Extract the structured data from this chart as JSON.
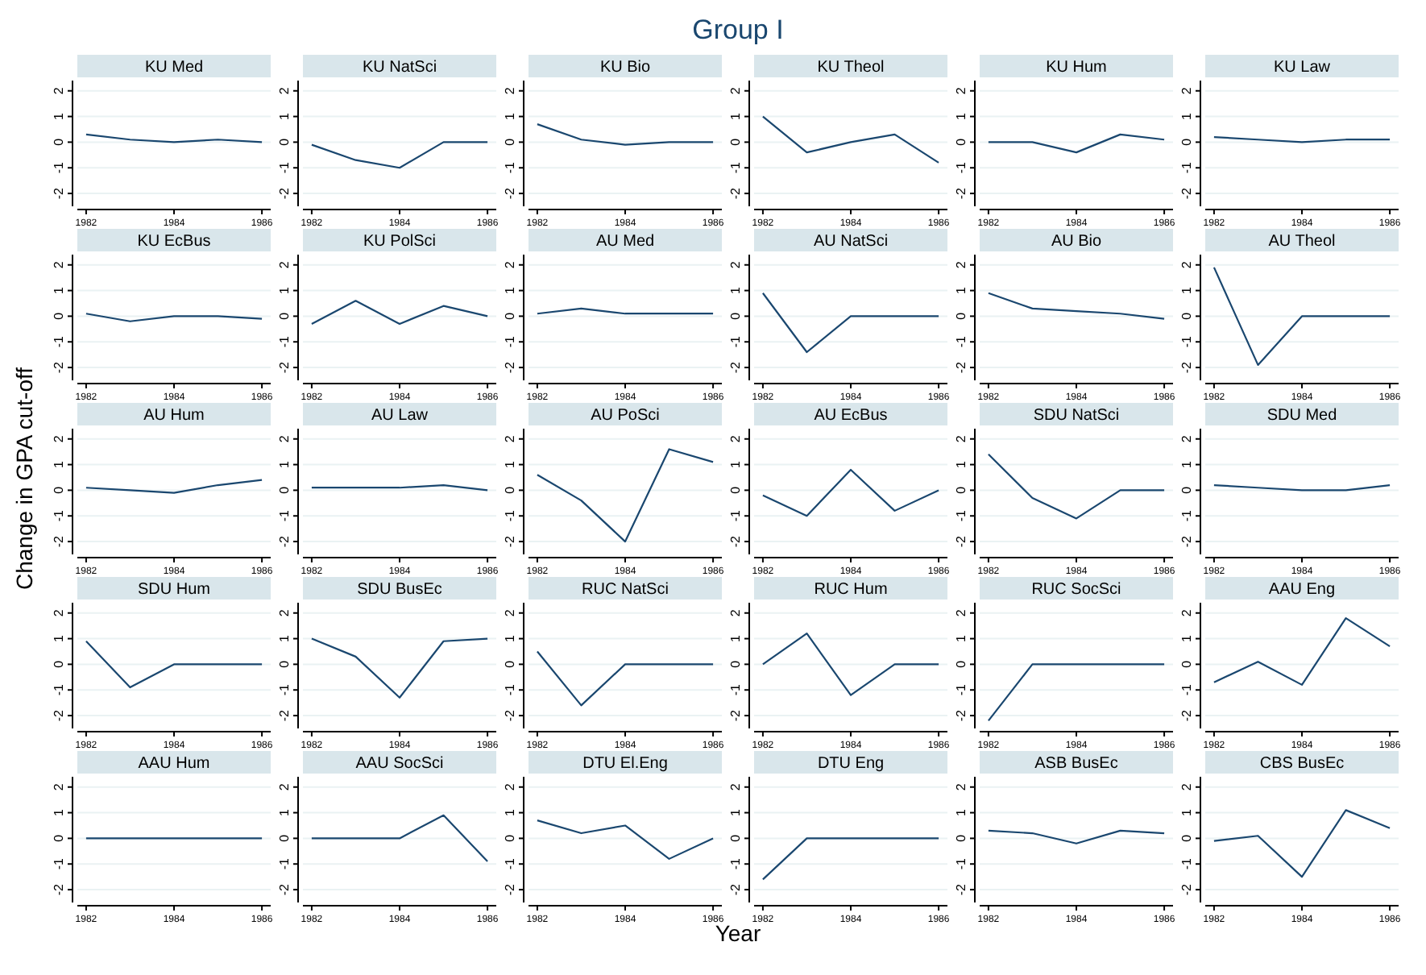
{
  "chart_data": [
    {
      "type": "line",
      "title": "KU Med",
      "annotations": [
        "Group I"
      ],
      "x": [
        1982,
        1983,
        1984,
        1985,
        1986
      ],
      "values": [
        0.3,
        0.1,
        0,
        0.1,
        0
      ],
      "color": "#1a476f",
      "xlim": [
        1981.8,
        1986.2
      ],
      "ylim": [
        -2.5,
        2.4
      ],
      "xticks": [
        1982,
        1984,
        1986
      ],
      "yticks": [
        -2,
        -1,
        0,
        1,
        2
      ],
      "grid": "y"
    },
    {
      "type": "line",
      "title": "KU NatSci",
      "x": [
        1982,
        1983,
        1984,
        1985,
        1986
      ],
      "values": [
        -0.1,
        -0.7,
        -1,
        0,
        0
      ],
      "color": "#1a476f",
      "xlim": [
        1981.8,
        1986.2
      ],
      "ylim": [
        -2.5,
        2.4
      ],
      "xticks": [
        1982,
        1984,
        1986
      ],
      "yticks": [
        -2,
        -1,
        0,
        1,
        2
      ],
      "grid": "y"
    },
    {
      "type": "line",
      "title": "KU Bio",
      "x": [
        1982,
        1983,
        1984,
        1985,
        1986
      ],
      "values": [
        0.7,
        0.1,
        -0.1,
        0,
        0
      ],
      "color": "#1a476f",
      "xlim": [
        1981.8,
        1986.2
      ],
      "ylim": [
        -2.5,
        2.4
      ],
      "xticks": [
        1982,
        1984,
        1986
      ],
      "yticks": [
        -2,
        -1,
        0,
        1,
        2
      ],
      "grid": "y"
    },
    {
      "type": "line",
      "title": "KU Theol",
      "x": [
        1982,
        1983,
        1984,
        1985,
        1986
      ],
      "values": [
        1,
        -0.4,
        0,
        0.3,
        -0.8
      ],
      "color": "#1a476f",
      "xlim": [
        1981.8,
        1986.2
      ],
      "ylim": [
        -2.5,
        2.4
      ],
      "xticks": [
        1982,
        1984,
        1986
      ],
      "yticks": [
        -2,
        -1,
        0,
        1,
        2
      ],
      "grid": "y"
    },
    {
      "type": "line",
      "title": "KU Hum",
      "x": [
        1982,
        1983,
        1984,
        1985,
        1986
      ],
      "values": [
        0,
        0,
        -0.4,
        0.3,
        0.1
      ],
      "color": "#1a476f",
      "xlim": [
        1981.8,
        1986.2
      ],
      "ylim": [
        -2.5,
        2.4
      ],
      "xticks": [
        1982,
        1984,
        1986
      ],
      "yticks": [
        -2,
        -1,
        0,
        1,
        2
      ],
      "grid": "y"
    },
    {
      "type": "line",
      "title": "KU Law",
      "x": [
        1982,
        1983,
        1984,
        1985,
        1986
      ],
      "values": [
        0.2,
        0.1,
        0,
        0.1,
        0.1
      ],
      "color": "#1a476f",
      "xlim": [
        1981.8,
        1986.2
      ],
      "ylim": [
        -2.5,
        2.4
      ],
      "xticks": [
        1982,
        1984,
        1986
      ],
      "yticks": [
        -2,
        -1,
        0,
        1,
        2
      ],
      "grid": "y"
    },
    {
      "type": "line",
      "title": "KU EcBus",
      "x": [
        1982,
        1983,
        1984,
        1985,
        1986
      ],
      "values": [
        0.1,
        -0.2,
        0,
        0,
        -0.1
      ],
      "color": "#1a476f",
      "xlim": [
        1981.8,
        1986.2
      ],
      "ylim": [
        -2.5,
        2.4
      ],
      "xticks": [
        1982,
        1984,
        1986
      ],
      "yticks": [
        -2,
        -1,
        0,
        1,
        2
      ],
      "grid": "y"
    },
    {
      "type": "line",
      "title": "KU PolSci",
      "x": [
        1982,
        1983,
        1984,
        1985,
        1986
      ],
      "values": [
        -0.3,
        0.6,
        -0.3,
        0.4,
        0
      ],
      "color": "#1a476f",
      "xlim": [
        1981.8,
        1986.2
      ],
      "ylim": [
        -2.5,
        2.4
      ],
      "xticks": [
        1982,
        1984,
        1986
      ],
      "yticks": [
        -2,
        -1,
        0,
        1,
        2
      ],
      "grid": "y"
    },
    {
      "type": "line",
      "title": "AU Med",
      "x": [
        1982,
        1983,
        1984,
        1985,
        1986
      ],
      "values": [
        0.1,
        0.3,
        0.1,
        0.1,
        0.1
      ],
      "color": "#1a476f",
      "xlim": [
        1981.8,
        1986.2
      ],
      "ylim": [
        -2.5,
        2.4
      ],
      "xticks": [
        1982,
        1984,
        1986
      ],
      "yticks": [
        -2,
        -1,
        0,
        1,
        2
      ],
      "grid": "y"
    },
    {
      "type": "line",
      "title": "AU NatSci",
      "x": [
        1982,
        1983,
        1984,
        1985,
        1986
      ],
      "values": [
        0.9,
        -1.4,
        0,
        0,
        0
      ],
      "color": "#1a476f",
      "xlim": [
        1981.8,
        1986.2
      ],
      "ylim": [
        -2.5,
        2.4
      ],
      "xticks": [
        1982,
        1984,
        1986
      ],
      "yticks": [
        -2,
        -1,
        0,
        1,
        2
      ],
      "grid": "y"
    },
    {
      "type": "line",
      "title": "AU Bio",
      "x": [
        1982,
        1983,
        1984,
        1985,
        1986
      ],
      "values": [
        0.9,
        0.3,
        0.2,
        0.1,
        -0.1
      ],
      "color": "#1a476f",
      "xlim": [
        1981.8,
        1986.2
      ],
      "ylim": [
        -2.5,
        2.4
      ],
      "xticks": [
        1982,
        1984,
        1986
      ],
      "yticks": [
        -2,
        -1,
        0,
        1,
        2
      ],
      "grid": "y"
    },
    {
      "type": "line",
      "title": "AU Theol",
      "x": [
        1982,
        1983,
        1984,
        1985,
        1986
      ],
      "values": [
        1.9,
        -1.9,
        0,
        0,
        0
      ],
      "color": "#1a476f",
      "xlim": [
        1981.8,
        1986.2
      ],
      "ylim": [
        -2.5,
        2.4
      ],
      "xticks": [
        1982,
        1984,
        1986
      ],
      "yticks": [
        -2,
        -1,
        0,
        1,
        2
      ],
      "grid": "y"
    },
    {
      "type": "line",
      "title": "AU Hum",
      "ylabel": "Change in GPA cut-off",
      "x": [
        1982,
        1983,
        1984,
        1985,
        1986
      ],
      "values": [
        0.1,
        0,
        -0.1,
        0.2,
        0.4
      ],
      "color": "#1a476f",
      "xlim": [
        1981.8,
        1986.2
      ],
      "ylim": [
        -2.5,
        2.4
      ],
      "xticks": [
        1982,
        1984,
        1986
      ],
      "yticks": [
        -2,
        -1,
        0,
        1,
        2
      ],
      "grid": "y"
    },
    {
      "type": "line",
      "title": "AU Law",
      "x": [
        1982,
        1983,
        1984,
        1985,
        1986
      ],
      "values": [
        0.1,
        0.1,
        0.1,
        0.2,
        0
      ],
      "color": "#1a476f",
      "xlim": [
        1981.8,
        1986.2
      ],
      "ylim": [
        -2.5,
        2.4
      ],
      "xticks": [
        1982,
        1984,
        1986
      ],
      "yticks": [
        -2,
        -1,
        0,
        1,
        2
      ],
      "grid": "y"
    },
    {
      "type": "line",
      "title": "AU PoSci",
      "x": [
        1982,
        1983,
        1984,
        1985,
        1986
      ],
      "values": [
        0.6,
        -0.4,
        -2,
        1.6,
        1.1
      ],
      "color": "#1a476f",
      "xlim": [
        1981.8,
        1986.2
      ],
      "ylim": [
        -2.5,
        2.4
      ],
      "xticks": [
        1982,
        1984,
        1986
      ],
      "yticks": [
        -2,
        -1,
        0,
        1,
        2
      ],
      "grid": "y"
    },
    {
      "type": "line",
      "title": "AU EcBus",
      "x": [
        1982,
        1983,
        1984,
        1985,
        1986
      ],
      "values": [
        -0.2,
        -1,
        0.8,
        -0.8,
        0
      ],
      "color": "#1a476f",
      "xlim": [
        1981.8,
        1986.2
      ],
      "ylim": [
        -2.5,
        2.4
      ],
      "xticks": [
        1982,
        1984,
        1986
      ],
      "yticks": [
        -2,
        -1,
        0,
        1,
        2
      ],
      "grid": "y"
    },
    {
      "type": "line",
      "title": "SDU NatSci",
      "x": [
        1982,
        1983,
        1984,
        1985,
        1986
      ],
      "values": [
        1.4,
        -0.3,
        -1.1,
        0,
        0
      ],
      "color": "#1a476f",
      "xlim": [
        1981.8,
        1986.2
      ],
      "ylim": [
        -2.5,
        2.4
      ],
      "xticks": [
        1982,
        1984,
        1986
      ],
      "yticks": [
        -2,
        -1,
        0,
        1,
        2
      ],
      "grid": "y"
    },
    {
      "type": "line",
      "title": "SDU Med",
      "x": [
        1982,
        1983,
        1984,
        1985,
        1986
      ],
      "values": [
        0.2,
        0.1,
        0,
        0,
        0.2
      ],
      "color": "#1a476f",
      "xlim": [
        1981.8,
        1986.2
      ],
      "ylim": [
        -2.5,
        2.4
      ],
      "xticks": [
        1982,
        1984,
        1986
      ],
      "yticks": [
        -2,
        -1,
        0,
        1,
        2
      ],
      "grid": "y"
    },
    {
      "type": "line",
      "title": "SDU Hum",
      "x": [
        1982,
        1983,
        1984,
        1985,
        1986
      ],
      "values": [
        0.9,
        -0.9,
        0,
        0,
        0
      ],
      "color": "#1a476f",
      "xlim": [
        1981.8,
        1986.2
      ],
      "ylim": [
        -2.5,
        2.4
      ],
      "xticks": [
        1982,
        1984,
        1986
      ],
      "yticks": [
        -2,
        -1,
        0,
        1,
        2
      ],
      "grid": "y"
    },
    {
      "type": "line",
      "title": "SDU BusEc",
      "x": [
        1982,
        1983,
        1984,
        1985,
        1986
      ],
      "values": [
        1,
        0.3,
        -1.3,
        0.9,
        1
      ],
      "color": "#1a476f",
      "xlim": [
        1981.8,
        1986.2
      ],
      "ylim": [
        -2.5,
        2.4
      ],
      "xticks": [
        1982,
        1984,
        1986
      ],
      "yticks": [
        -2,
        -1,
        0,
        1,
        2
      ],
      "grid": "y"
    },
    {
      "type": "line",
      "title": "RUC NatSci",
      "x": [
        1982,
        1983,
        1984,
        1985,
        1986
      ],
      "values": [
        0.5,
        -1.6,
        0,
        0,
        0
      ],
      "color": "#1a476f",
      "xlim": [
        1981.8,
        1986.2
      ],
      "ylim": [
        -2.5,
        2.4
      ],
      "xticks": [
        1982,
        1984,
        1986
      ],
      "yticks": [
        -2,
        -1,
        0,
        1,
        2
      ],
      "grid": "y"
    },
    {
      "type": "line",
      "title": "RUC Hum",
      "x": [
        1982,
        1983,
        1984,
        1985,
        1986
      ],
      "values": [
        0,
        1.2,
        -1.2,
        0,
        0
      ],
      "color": "#1a476f",
      "xlim": [
        1981.8,
        1986.2
      ],
      "ylim": [
        -2.5,
        2.4
      ],
      "xticks": [
        1982,
        1984,
        1986
      ],
      "yticks": [
        -2,
        -1,
        0,
        1,
        2
      ],
      "grid": "y"
    },
    {
      "type": "line",
      "title": "RUC SocSci",
      "x": [
        1982,
        1983,
        1984,
        1985,
        1986
      ],
      "values": [
        -2.2,
        0,
        0,
        0,
        0
      ],
      "color": "#1a476f",
      "xlim": [
        1981.8,
        1986.2
      ],
      "ylim": [
        -2.5,
        2.4
      ],
      "xticks": [
        1982,
        1984,
        1986
      ],
      "yticks": [
        -2,
        -1,
        0,
        1,
        2
      ],
      "grid": "y"
    },
    {
      "type": "line",
      "title": "AAU Eng",
      "x": [
        1982,
        1983,
        1984,
        1985,
        1986
      ],
      "values": [
        -0.7,
        0.1,
        -0.8,
        1.8,
        0.7
      ],
      "color": "#1a476f",
      "xlim": [
        1981.8,
        1986.2
      ],
      "ylim": [
        -2.5,
        2.4
      ],
      "xticks": [
        1982,
        1984,
        1986
      ],
      "yticks": [
        -2,
        -1,
        0,
        1,
        2
      ],
      "grid": "y"
    },
    {
      "type": "line",
      "title": "AAU Hum",
      "x": [
        1982,
        1983,
        1984,
        1985,
        1986
      ],
      "values": [
        0,
        0,
        0,
        0,
        0
      ],
      "color": "#1a476f",
      "xlim": [
        1981.8,
        1986.2
      ],
      "ylim": [
        -2.5,
        2.4
      ],
      "xticks": [
        1982,
        1984,
        1986
      ],
      "yticks": [
        -2,
        -1,
        0,
        1,
        2
      ],
      "grid": "y"
    },
    {
      "type": "line",
      "title": "AAU SocSci",
      "x": [
        1982,
        1983,
        1984,
        1985,
        1986
      ],
      "values": [
        0,
        0,
        0,
        0.9,
        -0.9
      ],
      "color": "#1a476f",
      "xlim": [
        1981.8,
        1986.2
      ],
      "ylim": [
        -2.5,
        2.4
      ],
      "xticks": [
        1982,
        1984,
        1986
      ],
      "yticks": [
        -2,
        -1,
        0,
        1,
        2
      ],
      "grid": "y"
    },
    {
      "type": "line",
      "title": "DTU El.Eng",
      "xlabel": "Year",
      "x": [
        1982,
        1983,
        1984,
        1985,
        1986
      ],
      "values": [
        0.7,
        0.2,
        0.5,
        -0.8,
        0
      ],
      "color": "#1a476f",
      "xlim": [
        1981.8,
        1986.2
      ],
      "ylim": [
        -2.5,
        2.4
      ],
      "xticks": [
        1982,
        1984,
        1986
      ],
      "yticks": [
        -2,
        -1,
        0,
        1,
        2
      ],
      "grid": "y"
    },
    {
      "type": "line",
      "title": "DTU Eng",
      "x": [
        1982,
        1983,
        1984,
        1985,
        1986
      ],
      "values": [
        -1.6,
        0,
        0,
        0,
        0
      ],
      "color": "#1a476f",
      "xlim": [
        1981.8,
        1986.2
      ],
      "ylim": [
        -2.5,
        2.4
      ],
      "xticks": [
        1982,
        1984,
        1986
      ],
      "yticks": [
        -2,
        -1,
        0,
        1,
        2
      ],
      "grid": "y"
    },
    {
      "type": "line",
      "title": "ASB BusEc",
      "x": [
        1982,
        1983,
        1984,
        1985,
        1986
      ],
      "values": [
        0.3,
        0.2,
        -0.2,
        0.3,
        0.2
      ],
      "color": "#1a476f",
      "xlim": [
        1981.8,
        1986.2
      ],
      "ylim": [
        -2.5,
        2.4
      ],
      "xticks": [
        1982,
        1984,
        1986
      ],
      "yticks": [
        -2,
        -1,
        0,
        1,
        2
      ],
      "grid": "y"
    },
    {
      "type": "line",
      "title": "CBS BusEc",
      "x": [
        1982,
        1983,
        1984,
        1985,
        1986
      ],
      "values": [
        -0.1,
        0.1,
        -1.5,
        1.1,
        0.4
      ],
      "color": "#1a476f",
      "xlim": [
        1981.8,
        1986.2
      ],
      "ylim": [
        -2.5,
        2.4
      ],
      "xticks": [
        1982,
        1984,
        1986
      ],
      "yticks": [
        -2,
        -1,
        0,
        1,
        2
      ],
      "grid": "y"
    }
  ]
}
